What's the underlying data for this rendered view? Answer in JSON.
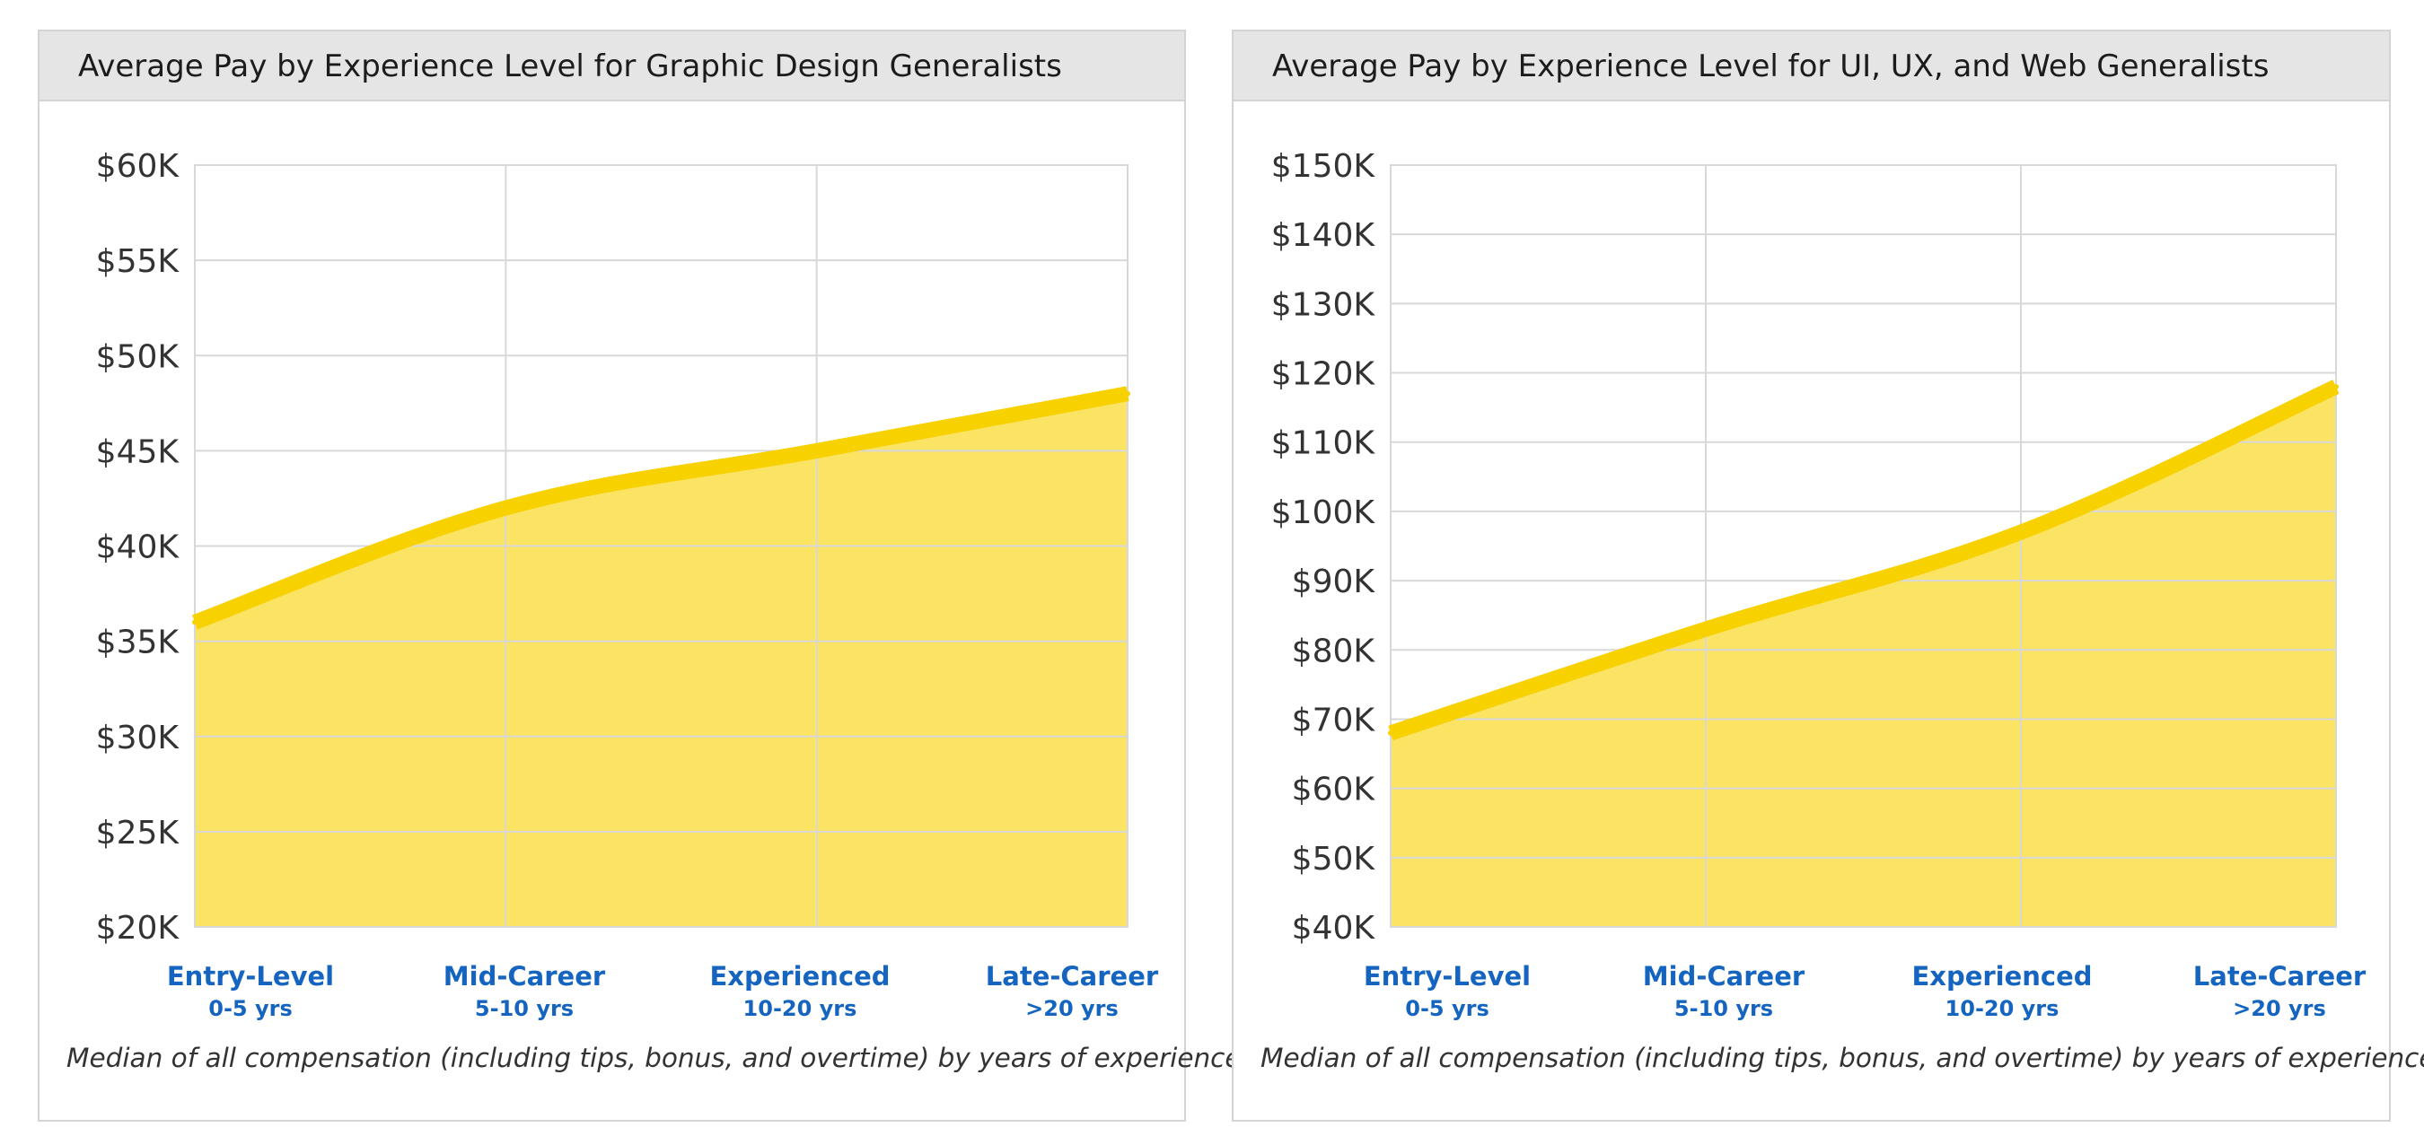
{
  "chart_data": [
    {
      "type": "area",
      "title": "Average Pay by Experience Level for Graphic Design Generalists",
      "categories": [
        "Entry-Level",
        "Mid-Career",
        "Experienced",
        "Late-Career"
      ],
      "category_sublabels": [
        "0-5 yrs",
        "5-10 yrs",
        "10-20 yrs",
        ">20 yrs"
      ],
      "y_unit": "USD",
      "values": [
        36000,
        42000,
        45000,
        48000
      ],
      "ylim": [
        20000,
        60000
      ],
      "yticks": [
        20000,
        25000,
        30000,
        35000,
        40000,
        45000,
        50000,
        55000,
        60000
      ],
      "ytick_labels": [
        "$20K",
        "$25K",
        "$30K",
        "$35K",
        "$40K",
        "$45K",
        "$50K",
        "$55K",
        "$60K"
      ],
      "grid": true,
      "caption": "Median of all compensation (including tips, bonus, and overtime) by years of experience."
    },
    {
      "type": "area",
      "title": "Average Pay by Experience Level for UI, UX, and Web Generalists",
      "categories": [
        "Entry-Level",
        "Mid-Career",
        "Experienced",
        "Late-Career"
      ],
      "category_sublabels": [
        "0-5 yrs",
        "5-10 yrs",
        "10-20 yrs",
        ">20 yrs"
      ],
      "y_unit": "USD",
      "values": [
        68000,
        83000,
        97000,
        118000
      ],
      "ylim": [
        40000,
        150000
      ],
      "yticks": [
        40000,
        50000,
        60000,
        70000,
        80000,
        90000,
        100000,
        110000,
        120000,
        130000,
        140000,
        150000
      ],
      "ytick_labels": [
        "$40K",
        "$50K",
        "$60K",
        "$70K",
        "$80K",
        "$90K",
        "$100K",
        "$110K",
        "$120K",
        "$130K",
        "$140K",
        "$150K"
      ],
      "grid": true,
      "caption": "Median of all compensation (including tips, bonus, and overtime) by years of experience."
    }
  ],
  "colors": {
    "line": "#f8d100",
    "fill": "#fbe363",
    "grid": "#d8d8d8",
    "category_label": "#1565c0",
    "tick_label": "#333333",
    "header_bg": "#e5e5e5"
  }
}
